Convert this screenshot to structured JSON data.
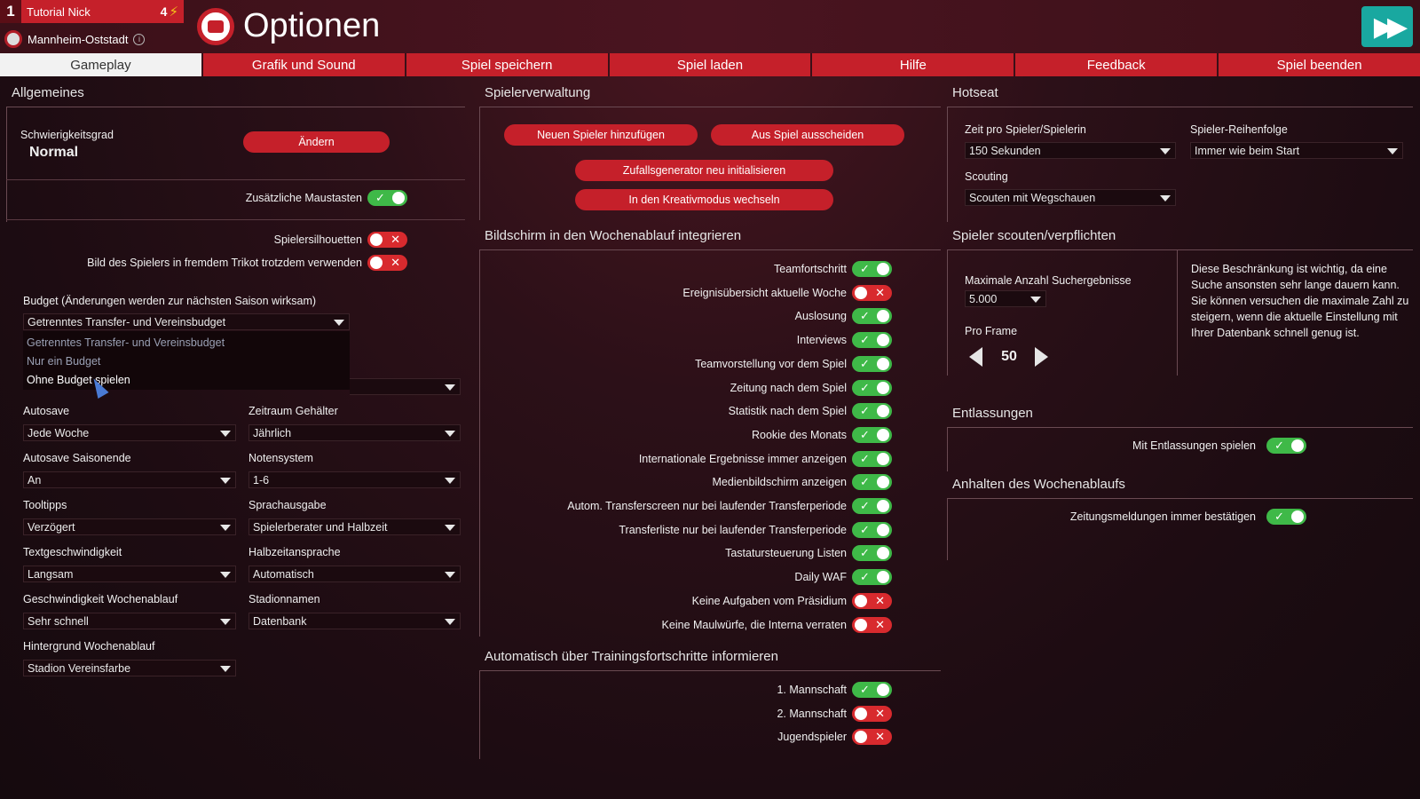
{
  "player": {
    "rank": "1",
    "name": "Tutorial Nick",
    "count": "4",
    "club": "Mannheim-Oststadt"
  },
  "page_title": "Optionen",
  "tabs": [
    "Gameplay",
    "Grafik und Sound",
    "Spiel speichern",
    "Spiel laden",
    "Hilfe",
    "Feedback",
    "Spiel beenden"
  ],
  "allgemeines": {
    "title": "Allgemeines",
    "difficulty_label": "Schwierigkeitsgrad",
    "difficulty_value": "Normal",
    "change_button": "Ändern",
    "extra_mouse": "Zusätzliche Maustasten",
    "silhouettes": "Spielersilhouetten",
    "foreign_jersey": "Bild des Spielers in fremdem Trikot trotzdem verwenden",
    "budget_label": "Budget (Änderungen werden zur nächsten Saison wirksam)",
    "budget_value": "Getrenntes Transfer- und Vereinsbudget",
    "budget_options": [
      "Getrenntes Transfer- und Vereinsbudget",
      "Nur ein Budget",
      "Ohne Budget spielen"
    ],
    "fields": [
      {
        "label": "Autosave",
        "value": "Jede Woche"
      },
      {
        "label": "Zeitraum Gehälter",
        "value": "Jährlich"
      },
      {
        "label": "Autosave Saisonende",
        "value": "An"
      },
      {
        "label": "Notensystem",
        "value": "1-6"
      },
      {
        "label": "Tooltipps",
        "value": "Verzögert"
      },
      {
        "label": "Sprachausgabe",
        "value": "Spielerberater und Halbzeit"
      },
      {
        "label": "Textgeschwindigkeit",
        "value": "Langsam"
      },
      {
        "label": "Halbzeitansprache",
        "value": "Automatisch"
      },
      {
        "label": "Geschwindigkeit Wochenablauf",
        "value": "Sehr schnell"
      },
      {
        "label": "Stadionnamen",
        "value": "Datenbank"
      },
      {
        "label": "Hintergrund Wochenablauf",
        "value": "Stadion Vereinsfarbe"
      }
    ]
  },
  "spielerverwaltung": {
    "title": "Spielerverwaltung",
    "add_player": "Neuen Spieler hinzufügen",
    "leave_game": "Aus Spiel ausscheiden",
    "reset_random": "Zufallsgenerator neu initialisieren",
    "creative_mode": "In den Kreativmodus wechseln"
  },
  "wochenablauf": {
    "title": "Bildschirm in den Wochenablauf integrieren",
    "items": [
      {
        "label": "Teamfortschritt",
        "on": true
      },
      {
        "label": "Ereignisübersicht aktuelle Woche",
        "on": false
      },
      {
        "label": "Auslosung",
        "on": true
      },
      {
        "label": "Interviews",
        "on": true
      },
      {
        "label": "Teamvorstellung vor dem Spiel",
        "on": true
      },
      {
        "label": "Zeitung nach dem Spiel",
        "on": true
      },
      {
        "label": "Statistik nach dem Spiel",
        "on": true
      },
      {
        "label": "Rookie des Monats",
        "on": true
      },
      {
        "label": "Internationale Ergebnisse immer anzeigen",
        "on": true
      },
      {
        "label": "Medienbildschirm anzeigen",
        "on": true
      },
      {
        "label": "Autom. Transferscreen nur bei laufender Transferperiode",
        "on": true
      },
      {
        "label": "Transferliste nur bei laufender Transferperiode",
        "on": true
      },
      {
        "label": "Tastatursteuerung Listen",
        "on": true
      },
      {
        "label": "Daily WAF",
        "on": true
      },
      {
        "label": "Keine Aufgaben vom Präsidium",
        "on": false
      },
      {
        "label": "Keine Maulwürfe, die Interna verraten",
        "on": false
      }
    ]
  },
  "training": {
    "title": "Automatisch über Trainingsfortschritte informieren",
    "items": [
      {
        "label": "1. Mannschaft",
        "on": true
      },
      {
        "label": "2. Mannschaft",
        "on": false
      },
      {
        "label": "Jugendspieler",
        "on": false
      }
    ]
  },
  "hotseat": {
    "title": "Hotseat",
    "time_label": "Zeit pro Spieler/Spielerin",
    "time_value": "150 Sekunden",
    "order_label": "Spieler-Reihenfolge",
    "order_value": "Immer wie beim Start",
    "scouting_label": "Scouting",
    "scouting_value": "Scouten mit Wegschauen"
  },
  "scouting": {
    "title": "Spieler scouten/verpflichten",
    "max_label": "Maximale Anzahl Suchergebnisse",
    "max_value": "5.000",
    "per_frame_label": "Pro Frame",
    "per_frame_value": "50",
    "info": "Diese Beschränkung ist wichtig, da eine Suche ansonsten sehr lange dauern kann. Sie können versuchen die maximale Zahl zu steigern, wenn die aktuelle Einstellung mit Ihrer Datenbank schnell genug ist."
  },
  "entlassungen": {
    "title": "Entlassungen",
    "label": "Mit Entlassungen spielen"
  },
  "anhalten": {
    "title": "Anhalten des Wochenablaufs",
    "label": "Zeitungsmeldungen immer bestätigen"
  },
  "colors": {
    "accent": "#c5202a",
    "on": "#3fb948",
    "off": "#d82a2e",
    "teal": "#19a8a0"
  },
  "icons": {
    "bolt": "⚡",
    "check": "✓",
    "cross": "✕",
    "continue": "▶▶"
  }
}
